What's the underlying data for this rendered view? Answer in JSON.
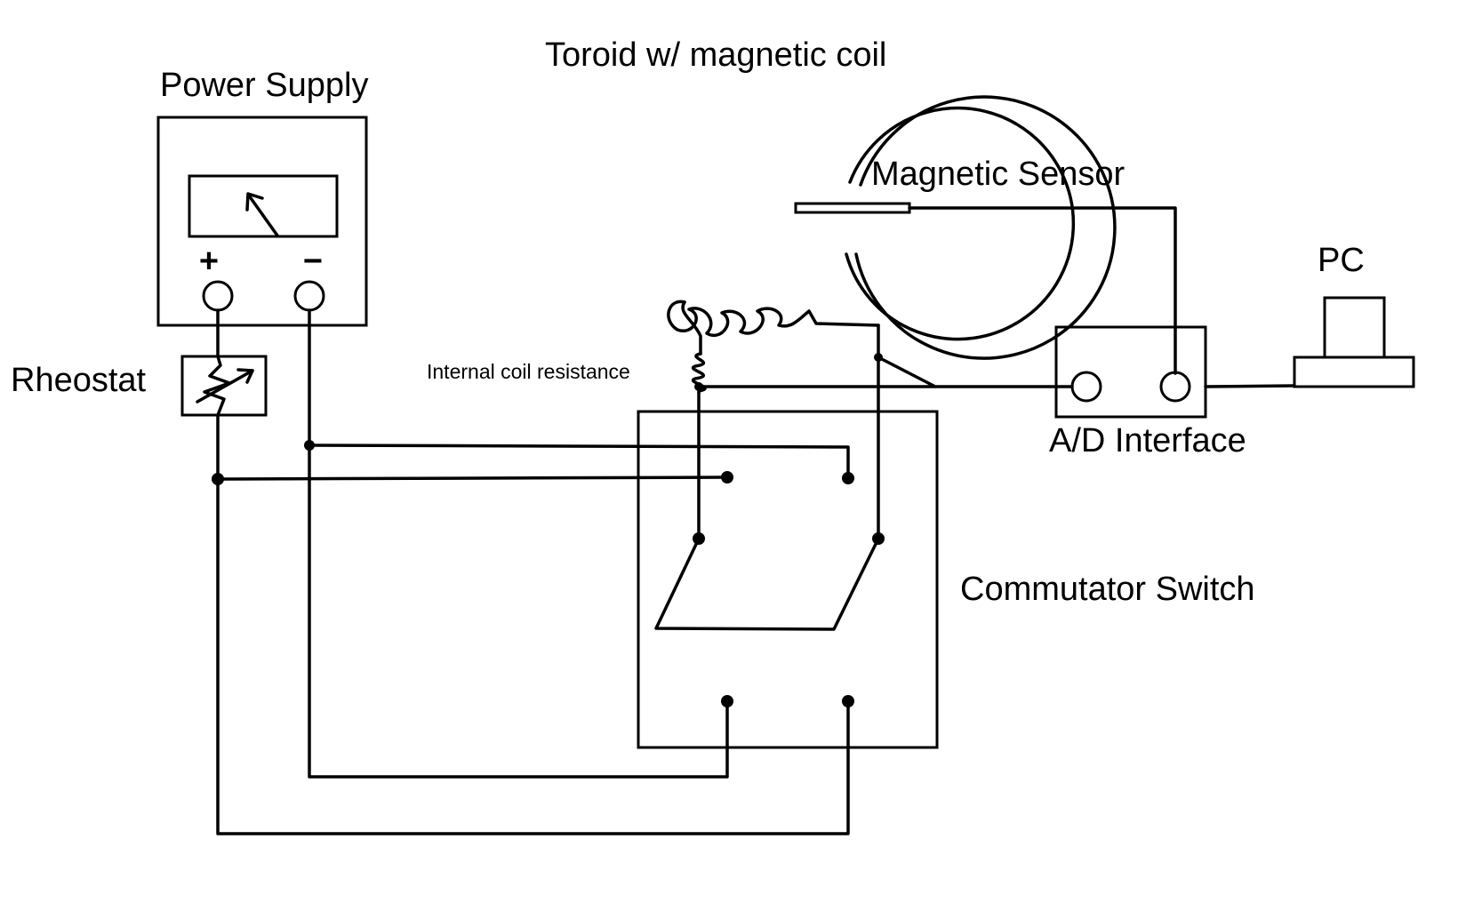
{
  "labels": {
    "power_supply": "Power Supply",
    "plus": "+",
    "minus": "−",
    "rheostat": "Rheostat",
    "toroid": "Toroid w/ magnetic coil",
    "magnetic_sensor": "Magnetic Sensor",
    "internal_resistance": "Internal coil resistance",
    "ad_interface": "A/D Interface",
    "pc": "PC",
    "commutator": "Commutator Switch"
  },
  "colors": {
    "line": "#000000",
    "background": "#ffffff"
  }
}
